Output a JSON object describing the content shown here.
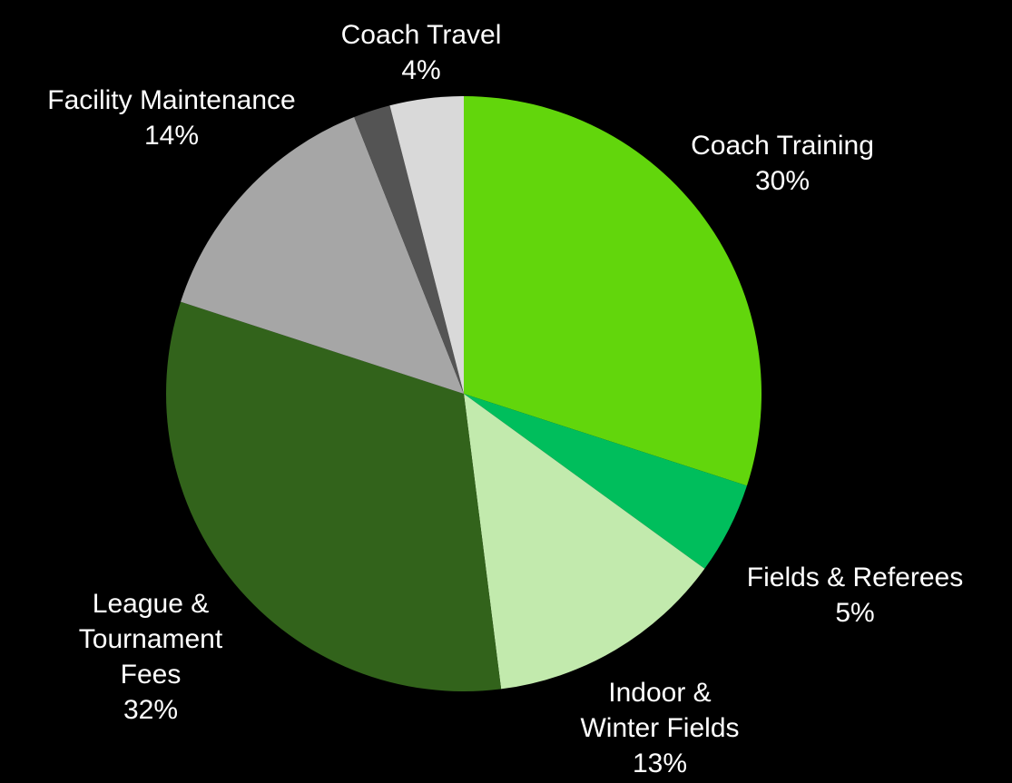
{
  "chart_data": {
    "type": "pie",
    "slices": [
      {
        "label": "Coach Training",
        "value": 30,
        "display": "30%",
        "color": "#62d60c"
      },
      {
        "label": "Fields & Referees",
        "value": 5,
        "display": "5%",
        "color": "#00be5c"
      },
      {
        "label": "Indoor & Winter Fields",
        "value": 13,
        "display": "13%",
        "color": "#c2eaad"
      },
      {
        "label": "League & Tournament Fees",
        "value": 32,
        "display": "32%",
        "color": "#32631b"
      },
      {
        "label": "Facility Maintenance",
        "value": 14,
        "display": "14%",
        "color": "#a6a6a6"
      },
      {
        "label": "",
        "value": 2,
        "display": "",
        "color": "#545454"
      },
      {
        "label": "Coach Travel",
        "value": 4,
        "display": "4%",
        "color": "#d9d9d9"
      }
    ],
    "start_angle": "12 o'clock",
    "direction": "clockwise",
    "legend": "none"
  }
}
